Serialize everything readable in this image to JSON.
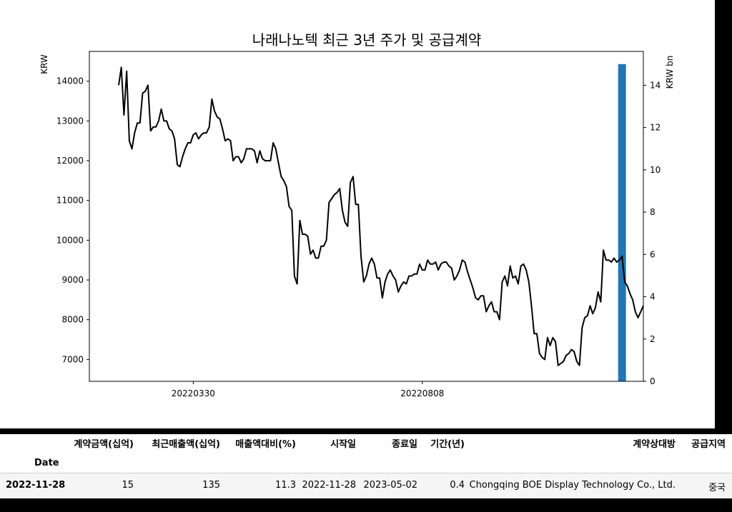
{
  "chart_data": {
    "type": "line",
    "title": "나래나노텍 최근 3년 주가 및 공급계약",
    "ylabel": "KRW",
    "y2label": "KRW bn",
    "ylim": [
      6450,
      14750
    ],
    "y2lim": [
      0,
      15.6
    ],
    "yticks": [
      7000,
      8000,
      9000,
      10000,
      11000,
      12000,
      13000,
      14000
    ],
    "y2ticks": [
      0,
      2,
      4,
      6,
      8,
      10,
      12,
      14
    ],
    "xticks": [
      {
        "label": "20220330",
        "index": 28
      },
      {
        "label": "20220808",
        "index": 114
      }
    ],
    "xlim": [
      -11,
      197
    ],
    "series": [
      {
        "values": [
          13900,
          14350,
          13150,
          14250,
          12500,
          12300,
          12700,
          12950,
          12950,
          13700,
          13750,
          13900,
          12750,
          12850,
          12850,
          13000,
          13300,
          13000,
          13000,
          12800,
          12750,
          12550,
          11900,
          11850,
          12100,
          12300,
          12450,
          12450,
          12650,
          12700,
          12550,
          12650,
          12700,
          12700,
          12850,
          13550,
          13250,
          13100,
          13050,
          12800,
          12500,
          12550,
          12500,
          12000,
          12100,
          12100,
          11950,
          12050,
          12300,
          12300,
          12300,
          12250,
          11950,
          12250,
          12050,
          12000,
          12000,
          12000,
          12450,
          12300,
          11950,
          11600,
          11500,
          11350,
          10850,
          10750,
          9100,
          8900,
          10500,
          10150,
          10150,
          10100,
          9650,
          9750,
          9550,
          9550,
          9850,
          9850,
          10000,
          10950,
          11050,
          11150,
          11200,
          11300,
          10750,
          10450,
          10350,
          11450,
          11600,
          10900,
          10900,
          9600,
          8950,
          9100,
          9400,
          9550,
          9400,
          9050,
          9050,
          8550,
          8950,
          9150,
          9250,
          9100,
          9000,
          8700,
          8850,
          8950,
          8900,
          9100,
          9100,
          9150,
          9150,
          9400,
          9250,
          9250,
          9500,
          9400,
          9400,
          9450,
          9250,
          9400,
          9450,
          9450,
          9350,
          9300,
          9000,
          9100,
          9250,
          9500,
          9450,
          9200,
          9000,
          8800,
          8550,
          8500,
          8600,
          8600,
          8200,
          8350,
          8450,
          8200,
          8200,
          8000,
          8950,
          9100,
          8850,
          9350,
          9050,
          9100,
          8900,
          9350,
          9400,
          9250,
          8950,
          8350,
          7650,
          7650,
          7150,
          7050,
          7000,
          7550,
          7350,
          7550,
          7450,
          6850,
          6900,
          6950,
          7100,
          7150,
          7250,
          7200,
          6950,
          6850,
          7800,
          8050,
          8100,
          8350,
          8150,
          8300,
          8700,
          8450,
          9750,
          9500,
          9500,
          9450,
          9550,
          9450,
          9500,
          9600,
          8950,
          8850,
          8650,
          8500,
          8200,
          8050,
          8200,
          8350
        ]
      }
    ],
    "bars": [
      {
        "label": "2022-11-28",
        "index": 189,
        "value": 15
      }
    ]
  },
  "table": {
    "columns": [
      "계약금액(십억)",
      "최근매출액(십억)",
      "매출액대비(%)",
      "시작일",
      "종료일",
      "기간(년)",
      "계약상대방",
      "공급지역"
    ],
    "index_name": "Date",
    "rows": [
      {
        "date": "2022-11-28",
        "cells": [
          "15",
          "135",
          "11.3",
          "2022-11-28",
          "2023-05-02",
          "0.4",
          "Chongqing BOE Display Technology Co., Ltd.",
          "중국"
        ]
      }
    ]
  }
}
